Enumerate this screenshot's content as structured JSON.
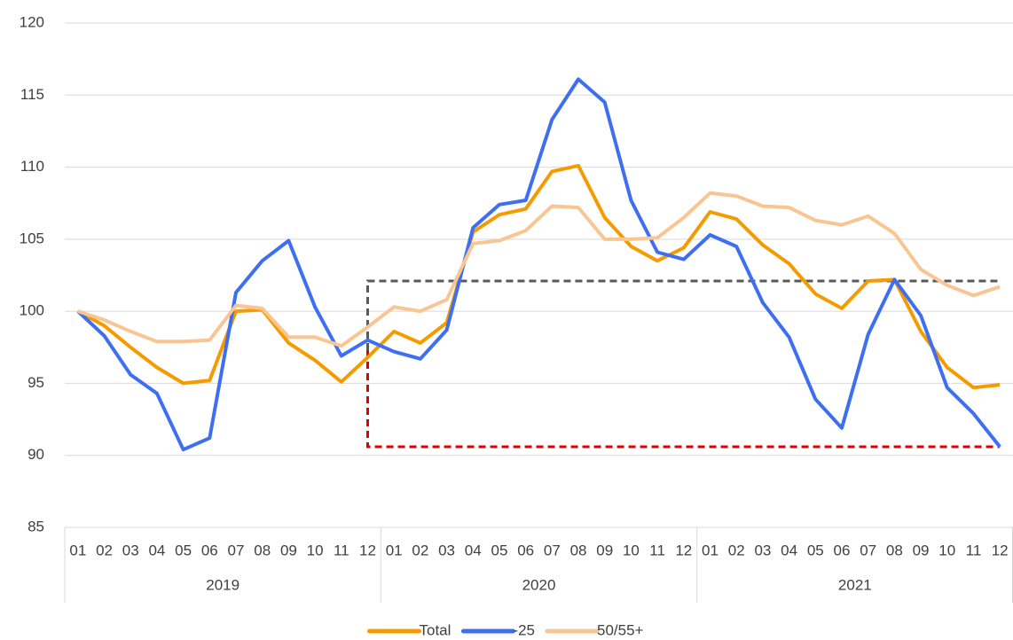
{
  "chart_data": {
    "type": "line",
    "categories": [
      "01",
      "02",
      "03",
      "04",
      "05",
      "06",
      "07",
      "08",
      "09",
      "10",
      "11",
      "12",
      "01",
      "02",
      "03",
      "04",
      "05",
      "06",
      "07",
      "08",
      "09",
      "10",
      "11",
      "12",
      "01",
      "02",
      "03",
      "04",
      "05",
      "06",
      "07",
      "08",
      "09",
      "10",
      "11",
      "12"
    ],
    "category_groups": [
      "2019",
      "2020",
      "2021"
    ],
    "series": [
      {
        "name": "Total",
        "color": "#f59b00",
        "values": [
          100,
          99.0,
          97.5,
          96.1,
          95.0,
          95.2,
          100.0,
          100.1,
          97.8,
          96.6,
          95.1,
          96.8,
          98.6,
          97.8,
          99.2,
          105.5,
          106.7,
          107.1,
          109.7,
          110.1,
          106.5,
          104.5,
          103.5,
          104.4,
          106.9,
          106.4,
          104.6,
          103.3,
          101.2,
          100.2,
          102.1,
          102.2,
          98.6,
          96.1,
          94.7,
          94.9
        ]
      },
      {
        "name": "-25",
        "color": "#3d6ff0",
        "values": [
          100,
          98.3,
          95.6,
          94.3,
          90.4,
          91.2,
          101.3,
          103.5,
          104.9,
          100.3,
          96.9,
          98.0,
          97.2,
          96.7,
          98.7,
          105.8,
          107.4,
          107.7,
          113.3,
          116.1,
          114.5,
          107.7,
          104.1,
          103.6,
          105.3,
          104.5,
          100.6,
          98.2,
          93.9,
          91.9,
          98.4,
          102.2,
          99.7,
          94.7,
          92.9,
          90.6
        ]
      },
      {
        "name": "50/55+",
        "color": "#f9c592",
        "values": [
          100,
          99.4,
          98.6,
          97.9,
          97.9,
          98.0,
          100.4,
          100.2,
          98.2,
          98.2,
          97.6,
          98.9,
          100.3,
          100.0,
          100.8,
          104.7,
          104.9,
          105.6,
          107.3,
          107.2,
          105.0,
          105.0,
          105.1,
          106.5,
          108.2,
          108.0,
          107.3,
          107.2,
          106.3,
          106.0,
          106.6,
          105.4,
          102.9,
          101.8,
          101.1,
          101.7
        ]
      }
    ],
    "reference_lines": [
      {
        "color": "#595959",
        "level": 102.1,
        "base": 97.3,
        "start_category": 11
      },
      {
        "color": "#e00000",
        "level": 90.6,
        "base": 97.3,
        "start_category": 11
      }
    ],
    "ylim": [
      85,
      120
    ],
    "yticks": [
      85,
      90,
      95,
      100,
      105,
      110,
      115,
      120
    ],
    "grid": true,
    "legend": "bottom"
  }
}
